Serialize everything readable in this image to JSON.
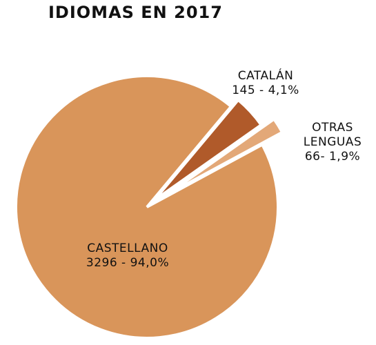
{
  "chart_data": {
    "type": "pie",
    "title": "IDIOMAS EN 2017",
    "categories": [
      "CASTELLANO",
      "CATALÁN",
      "OTRAS LENGUAS"
    ],
    "values": [
      3296,
      145,
      66
    ],
    "value_labels": [
      "3296 - 94,0%",
      "145 - 4,1%",
      "66- 1,9%"
    ],
    "colors": [
      "#d9955a",
      "#b05a2a",
      "#e3a878"
    ]
  }
}
